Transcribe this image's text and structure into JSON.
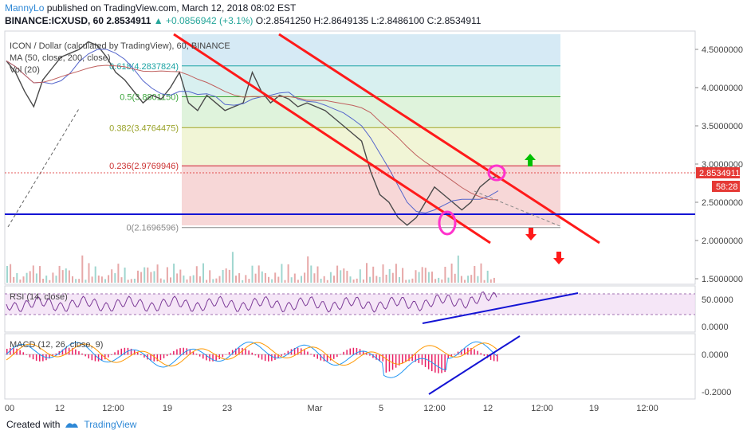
{
  "header": {
    "author": "MannyLo",
    "published": " published on TradingView.com, March 12, 2018 08:02 EST",
    "symbol": "BINANCE:ICXUSD, 60",
    "price": "2.8534911",
    "change": "▲ +0.0856942 (+3.1%)",
    "ohlc": "O:2.8541250 H:2.8649135 L:2.8486100 C:2.8534911"
  },
  "legend": {
    "title": "ICON / Dollar (calculated by TradingView), 60, BINANCE",
    "ma": "MA (50, close, 200, close)",
    "vol": "Vol (20)"
  },
  "colors": {
    "fib_line": "#5b9bd5",
    "channel": "#ff1a1a",
    "support": "#1414d4",
    "price": "#4a4a4a",
    "ma50": "#5566cc",
    "ma200": "#c0605e",
    "rsi": "#7d3c98",
    "macd": "#2196f3",
    "signal": "#ff9800",
    "hist_pos": "#e91e63",
    "hist_neg": "#e91e63",
    "arrow_up": "#00c000",
    "arrow_down": "#ff1a1a",
    "circle": "#ff33cc",
    "trend_indicator": "#1414d4"
  },
  "chart_data": {
    "type": "line",
    "price_axis": {
      "labels": [
        "4.5000000",
        "4.0000000",
        "3.5000000",
        "3.0000000",
        "2.5000000",
        "2.0000000",
        "1.5000000"
      ],
      "values": [
        4.5,
        4.0,
        3.5,
        3.0,
        2.5,
        2.0,
        1.5
      ],
      "current": "2.8534911",
      "countdown": "58:28"
    },
    "time_axis": [
      "00",
      "12",
      "12:00",
      "19",
      "23",
      "Mar",
      "5",
      "12:00",
      "12",
      "12:00",
      "19",
      "12:00"
    ],
    "fibonacci": [
      {
        "level": "0.618",
        "value": "4.2837824",
        "label": "0.618(4.2837824)"
      },
      {
        "level": "0.5",
        "value": "3.8801150",
        "label": "0.5(3.8801150)"
      },
      {
        "level": "0.382",
        "value": "3.4764475",
        "label": "0.382(3.4764475)"
      },
      {
        "level": "0.236",
        "value": "2.9769946",
        "label": "0.236(2.9769946)"
      },
      {
        "level": "0",
        "value": "2.1696596",
        "label": "0(2.1696596)"
      }
    ],
    "support_level": 2.33,
    "price_series": [
      4.35,
      4.2,
      3.95,
      3.75,
      4.1,
      4.25,
      4.4,
      4.45,
      4.5,
      4.6,
      4.55,
      4.4,
      4.2,
      4.1,
      3.95,
      3.8,
      3.9,
      3.85,
      4.0,
      4.2,
      3.8,
      3.7,
      3.9,
      3.8,
      3.7,
      3.75,
      3.8,
      4.2,
      3.95,
      3.8,
      3.9,
      3.85,
      3.75,
      3.8,
      3.75,
      3.7,
      3.6,
      3.5,
      3.4,
      3.3,
      2.9,
      2.6,
      2.5,
      2.3,
      2.2,
      2.3,
      2.5,
      2.7,
      2.6,
      2.5,
      2.4,
      2.5,
      2.7,
      2.8,
      2.85
    ],
    "rsi": {
      "title": "RSI (14, close)",
      "labels": [
        "50.0000",
        "0.0000"
      ]
    },
    "macd": {
      "title": "MACD (12, 26, close, 9)",
      "labels": [
        "0.0000",
        "-0.2000"
      ]
    }
  },
  "footer": {
    "created": "Created with",
    "brand": "TradingView"
  }
}
